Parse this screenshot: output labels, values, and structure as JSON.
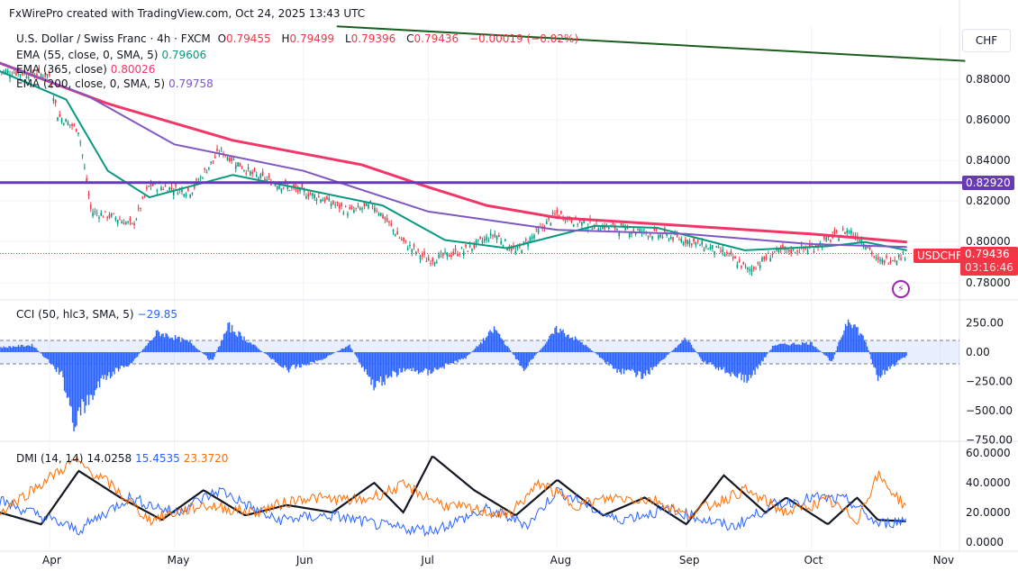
{
  "header": {
    "text": "FxWirePro created with TradingView.com, Oct 24, 2025 13:43 UTC"
  },
  "symbol": {
    "name": "U.S. Dollar / Swiss Franc · 4h · FXCM",
    "open_label": "O",
    "open": "0.79455",
    "high_label": "H",
    "high": "0.79499",
    "low_label": "L",
    "low": "0.79396",
    "close_label": "C",
    "close": "0.79436",
    "change": "−0.00019 (−0.02%)"
  },
  "indicators": {
    "ema55": {
      "label": "EMA (55, close, 0, SMA, 5)",
      "value": "0.79606",
      "color": "#089981"
    },
    "ema365": {
      "label": "EMA (365, close)",
      "value": "0.80026",
      "color": "#f23668"
    },
    "ema200": {
      "label": "EMA (200, close, 0, SMA, 5)",
      "value": "0.79758",
      "color": "#7e57c2"
    },
    "cci": {
      "label": "CCI (50, hlc3, SMA, 5)",
      "value": "−29.85",
      "color": "#2962ff"
    },
    "dmi": {
      "label": "DMI (14, 14)",
      "adx": "14.0258",
      "plus_di": "15.4535",
      "minus_di": "23.3720",
      "adx_color": "#131722",
      "plus_color": "#2962ff",
      "minus_color": "#ff6d00"
    }
  },
  "currency": "CHF",
  "price_badge": {
    "symbol": "USDCHF",
    "price": "0.79436",
    "countdown": "03:16:46",
    "color": "#f23645"
  },
  "hline_badge": {
    "value": "0.82920",
    "color": "#673ab7"
  },
  "chart_data": [
    {
      "type": "line",
      "title": "USDCHF 4h",
      "ylim": [
        0.775,
        0.9
      ],
      "price_ticks": [
        "0.88000",
        "0.86000",
        "0.84000",
        "0.82000",
        "0.80000",
        "0.78000"
      ],
      "x_ticks": [
        "Apr",
        "May",
        "Jun",
        "Jul",
        "Aug",
        "Sep",
        "Oct",
        "Nov"
      ],
      "series": [
        {
          "name": "USDCHF",
          "color": "#f23645",
          "points": [
            [
              "2025-03-20",
              0.884
            ],
            [
              "2025-04-01",
              0.882
            ],
            [
              "2025-04-03",
              0.862
            ],
            [
              "2025-04-08",
              0.855
            ],
            [
              "2025-04-11",
              0.815
            ],
            [
              "2025-04-17",
              0.812
            ],
            [
              "2025-04-21",
              0.808
            ],
            [
              "2025-04-25",
              0.828
            ],
            [
              "2025-05-05",
              0.825
            ],
            [
              "2025-05-12",
              0.845
            ],
            [
              "2025-05-20",
              0.833
            ],
            [
              "2025-05-28",
              0.827
            ],
            [
              "2025-06-05",
              0.822
            ],
            [
              "2025-06-12",
              0.815
            ],
            [
              "2025-06-18",
              0.818
            ],
            [
              "2025-06-25",
              0.8
            ],
            [
              "2025-07-01",
              0.791
            ],
            [
              "2025-07-10",
              0.796
            ],
            [
              "2025-07-17",
              0.804
            ],
            [
              "2025-07-22",
              0.795
            ],
            [
              "2025-08-01",
              0.814
            ],
            [
              "2025-08-07",
              0.809
            ],
            [
              "2025-08-15",
              0.807
            ],
            [
              "2025-08-22",
              0.805
            ],
            [
              "2025-09-01",
              0.801
            ],
            [
              "2025-09-10",
              0.795
            ],
            [
              "2025-09-16",
              0.786
            ],
            [
              "2025-09-22",
              0.795
            ],
            [
              "2025-10-01",
              0.797
            ],
            [
              "2025-10-10",
              0.806
            ],
            [
              "2025-10-14",
              0.8
            ],
            [
              "2025-10-17",
              0.79
            ],
            [
              "2025-10-24",
              0.794
            ]
          ]
        },
        {
          "name": "EMA (55, close, 0, SMA, 5)",
          "color": "#089981",
          "points": [
            [
              "2025-03-20",
              0.884
            ],
            [
              "2025-04-05",
              0.87
            ],
            [
              "2025-04-15",
              0.835
            ],
            [
              "2025-04-25",
              0.822
            ],
            [
              "2025-05-15",
              0.833
            ],
            [
              "2025-06-01",
              0.826
            ],
            [
              "2025-06-20",
              0.818
            ],
            [
              "2025-07-05",
              0.801
            ],
            [
              "2025-07-20",
              0.797
            ],
            [
              "2025-08-10",
              0.808
            ],
            [
              "2025-08-25",
              0.807
            ],
            [
              "2025-09-15",
              0.796
            ],
            [
              "2025-10-05",
              0.798
            ],
            [
              "2025-10-14",
              0.8
            ],
            [
              "2025-10-24",
              0.796
            ]
          ]
        },
        {
          "name": "EMA (365, close)",
          "color": "#f23668",
          "points": [
            [
              "2025-03-20",
              0.888
            ],
            [
              "2025-04-15",
              0.868
            ],
            [
              "2025-05-15",
              0.85
            ],
            [
              "2025-06-15",
              0.838
            ],
            [
              "2025-07-01",
              0.827
            ],
            [
              "2025-07-15",
              0.818
            ],
            [
              "2025-08-01",
              0.812
            ],
            [
              "2025-09-01",
              0.808
            ],
            [
              "2025-10-01",
              0.804
            ],
            [
              "2025-10-24",
              0.8
            ]
          ]
        },
        {
          "name": "EMA (200, close, 0, SMA, 5)",
          "color": "#7e57c2",
          "points": [
            [
              "2025-03-20",
              0.888
            ],
            [
              "2025-04-10",
              0.872
            ],
            [
              "2025-05-01",
              0.848
            ],
            [
              "2025-06-01",
              0.835
            ],
            [
              "2025-07-01",
              0.815
            ],
            [
              "2025-08-01",
              0.806
            ],
            [
              "2025-09-01",
              0.804
            ],
            [
              "2025-10-01",
              0.799
            ],
            [
              "2025-10-24",
              0.7976
            ]
          ]
        },
        {
          "name": "trendline",
          "color": "#1b5e20",
          "points": [
            [
              "2025-06-09",
              0.906
            ],
            [
              "2025-11-07",
              0.889
            ]
          ]
        },
        {
          "name": "horizontal level",
          "color": "#673ab7",
          "points": [
            [
              "2025-03-20",
              0.8292
            ],
            [
              "2025-11-07",
              0.8292
            ]
          ]
        }
      ]
    },
    {
      "type": "bar",
      "title": "CCI (50, hlc3, SMA, 5)",
      "ylim": [
        -750,
        300
      ],
      "y_ticks": [
        "250.00",
        "0.00",
        "−250.00",
        "−500.00",
        "−750.00"
      ],
      "bands": [
        100,
        -100
      ],
      "points": [
        [
          "2025-03-20",
          40
        ],
        [
          "2025-03-28",
          60
        ],
        [
          "2025-04-04",
          -200
        ],
        [
          "2025-04-07",
          -600
        ],
        [
          "2025-04-14",
          -220
        ],
        [
          "2025-04-21",
          -80
        ],
        [
          "2025-04-27",
          170
        ],
        [
          "2025-05-05",
          80
        ],
        [
          "2025-05-10",
          -80
        ],
        [
          "2025-05-14",
          220
        ],
        [
          "2025-05-20",
          60
        ],
        [
          "2025-05-28",
          -150
        ],
        [
          "2025-06-05",
          -70
        ],
        [
          "2025-06-12",
          60
        ],
        [
          "2025-06-18",
          -280
        ],
        [
          "2025-06-25",
          -150
        ],
        [
          "2025-07-01",
          -170
        ],
        [
          "2025-07-10",
          -50
        ],
        [
          "2025-07-17",
          200
        ],
        [
          "2025-07-24",
          -150
        ],
        [
          "2025-08-01",
          200
        ],
        [
          "2025-08-07",
          80
        ],
        [
          "2025-08-15",
          -150
        ],
        [
          "2025-08-22",
          -200
        ],
        [
          "2025-09-01",
          120
        ],
        [
          "2025-09-05",
          -80
        ],
        [
          "2025-09-16",
          -240
        ],
        [
          "2025-09-22",
          60
        ],
        [
          "2025-10-01",
          80
        ],
        [
          "2025-10-06",
          -80
        ],
        [
          "2025-10-10",
          300
        ],
        [
          "2025-10-14",
          100
        ],
        [
          "2025-10-17",
          -220
        ],
        [
          "2025-10-24",
          -30
        ]
      ]
    },
    {
      "type": "line",
      "title": "DMI (14, 14)",
      "ylim": [
        0,
        60
      ],
      "y_ticks": [
        "60.0000",
        "40.0000",
        "20.0000",
        "0.0000"
      ],
      "series": [
        {
          "name": "ADX",
          "color": "#131722",
          "points": [
            [
              "2025-03-20",
              20
            ],
            [
              "2025-03-30",
              12
            ],
            [
              "2025-04-08",
              48
            ],
            [
              "2025-04-18",
              30
            ],
            [
              "2025-04-28",
              15
            ],
            [
              "2025-05-08",
              35
            ],
            [
              "2025-05-18",
              18
            ],
            [
              "2025-05-28",
              25
            ],
            [
              "2025-06-08",
              20
            ],
            [
              "2025-06-18",
              40
            ],
            [
              "2025-06-25",
              20
            ],
            [
              "2025-07-02",
              58
            ],
            [
              "2025-07-12",
              35
            ],
            [
              "2025-07-22",
              18
            ],
            [
              "2025-08-01",
              42
            ],
            [
              "2025-08-12",
              18
            ],
            [
              "2025-08-22",
              30
            ],
            [
              "2025-09-01",
              12
            ],
            [
              "2025-09-10",
              45
            ],
            [
              "2025-09-20",
              20
            ],
            [
              "2025-09-25",
              30
            ],
            [
              "2025-10-05",
              12
            ],
            [
              "2025-10-12",
              30
            ],
            [
              "2025-10-17",
              15
            ],
            [
              "2025-10-24",
              14
            ]
          ]
        },
        {
          "name": "+DI",
          "color": "#2962ff",
          "points": [
            [
              "2025-03-20",
              28
            ],
            [
              "2025-04-08",
              8
            ],
            [
              "2025-04-20",
              30
            ],
            [
              "2025-05-01",
              20
            ],
            [
              "2025-05-12",
              35
            ],
            [
              "2025-05-25",
              15
            ],
            [
              "2025-06-08",
              18
            ],
            [
              "2025-06-22",
              10
            ],
            [
              "2025-07-02",
              8
            ],
            [
              "2025-07-15",
              22
            ],
            [
              "2025-07-25",
              12
            ],
            [
              "2025-08-01",
              35
            ],
            [
              "2025-08-15",
              15
            ],
            [
              "2025-08-28",
              22
            ],
            [
              "2025-09-12",
              10
            ],
            [
              "2025-09-22",
              25
            ],
            [
              "2025-10-02",
              30
            ],
            [
              "2025-10-10",
              28
            ],
            [
              "2025-10-17",
              12
            ],
            [
              "2025-10-24",
              15
            ]
          ]
        },
        {
          "name": "-DI",
          "color": "#ff6d00",
          "points": [
            [
              "2025-03-20",
              20
            ],
            [
              "2025-04-07",
              55
            ],
            [
              "2025-04-15",
              40
            ],
            [
              "2025-04-25",
              15
            ],
            [
              "2025-05-08",
              25
            ],
            [
              "2025-05-20",
              20
            ],
            [
              "2025-06-01",
              30
            ],
            [
              "2025-06-15",
              28
            ],
            [
              "2025-06-25",
              38
            ],
            [
              "2025-07-05",
              25
            ],
            [
              "2025-07-20",
              18
            ],
            [
              "2025-07-28",
              40
            ],
            [
              "2025-08-05",
              25
            ],
            [
              "2025-08-15",
              30
            ],
            [
              "2025-08-25",
              28
            ],
            [
              "2025-09-01",
              18
            ],
            [
              "2025-09-15",
              35
            ],
            [
              "2025-09-25",
              20
            ],
            [
              "2025-10-05",
              28
            ],
            [
              "2025-10-12",
              15
            ],
            [
              "2025-10-17",
              45
            ],
            [
              "2025-10-24",
              23
            ]
          ]
        }
      ]
    }
  ]
}
